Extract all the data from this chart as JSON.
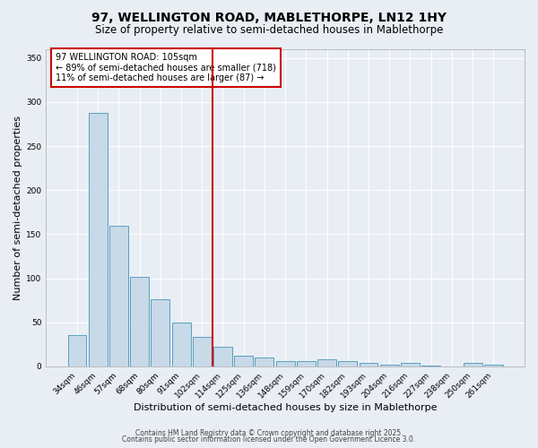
{
  "title1": "97, WELLINGTON ROAD, MABLETHORPE, LN12 1HY",
  "title2": "Size of property relative to semi-detached houses in Mablethorpe",
  "xlabel": "Distribution of semi-detached houses by size in Mablethorpe",
  "ylabel": "Number of semi-detached properties",
  "categories": [
    "34sqm",
    "46sqm",
    "57sqm",
    "68sqm",
    "80sqm",
    "91sqm",
    "102sqm",
    "114sqm",
    "125sqm",
    "136sqm",
    "148sqm",
    "159sqm",
    "170sqm",
    "182sqm",
    "193sqm",
    "204sqm",
    "216sqm",
    "227sqm",
    "238sqm",
    "250sqm",
    "261sqm"
  ],
  "values": [
    35,
    288,
    160,
    102,
    76,
    50,
    33,
    22,
    12,
    10,
    6,
    6,
    8,
    6,
    4,
    2,
    4,
    1,
    0,
    4,
    2
  ],
  "bar_color": "#c8d9e8",
  "bar_edge_color": "#5a9fc0",
  "vline_x": 6.5,
  "vline_color": "#cc0000",
  "annotation_title": "97 WELLINGTON ROAD: 105sqm",
  "annotation_line1": "← 89% of semi-detached houses are smaller (718)",
  "annotation_line2": "11% of semi-detached houses are larger (87) →",
  "annotation_box_facecolor": "#ffffff",
  "annotation_box_edgecolor": "#cc0000",
  "ylim": [
    0,
    360
  ],
  "yticks": [
    0,
    50,
    100,
    150,
    200,
    250,
    300,
    350
  ],
  "footnote1": "Contains HM Land Registry data © Crown copyright and database right 2025.",
  "footnote2": "Contains public sector information licensed under the Open Government Licence 3.0.",
  "bg_color": "#e8eef4"
}
